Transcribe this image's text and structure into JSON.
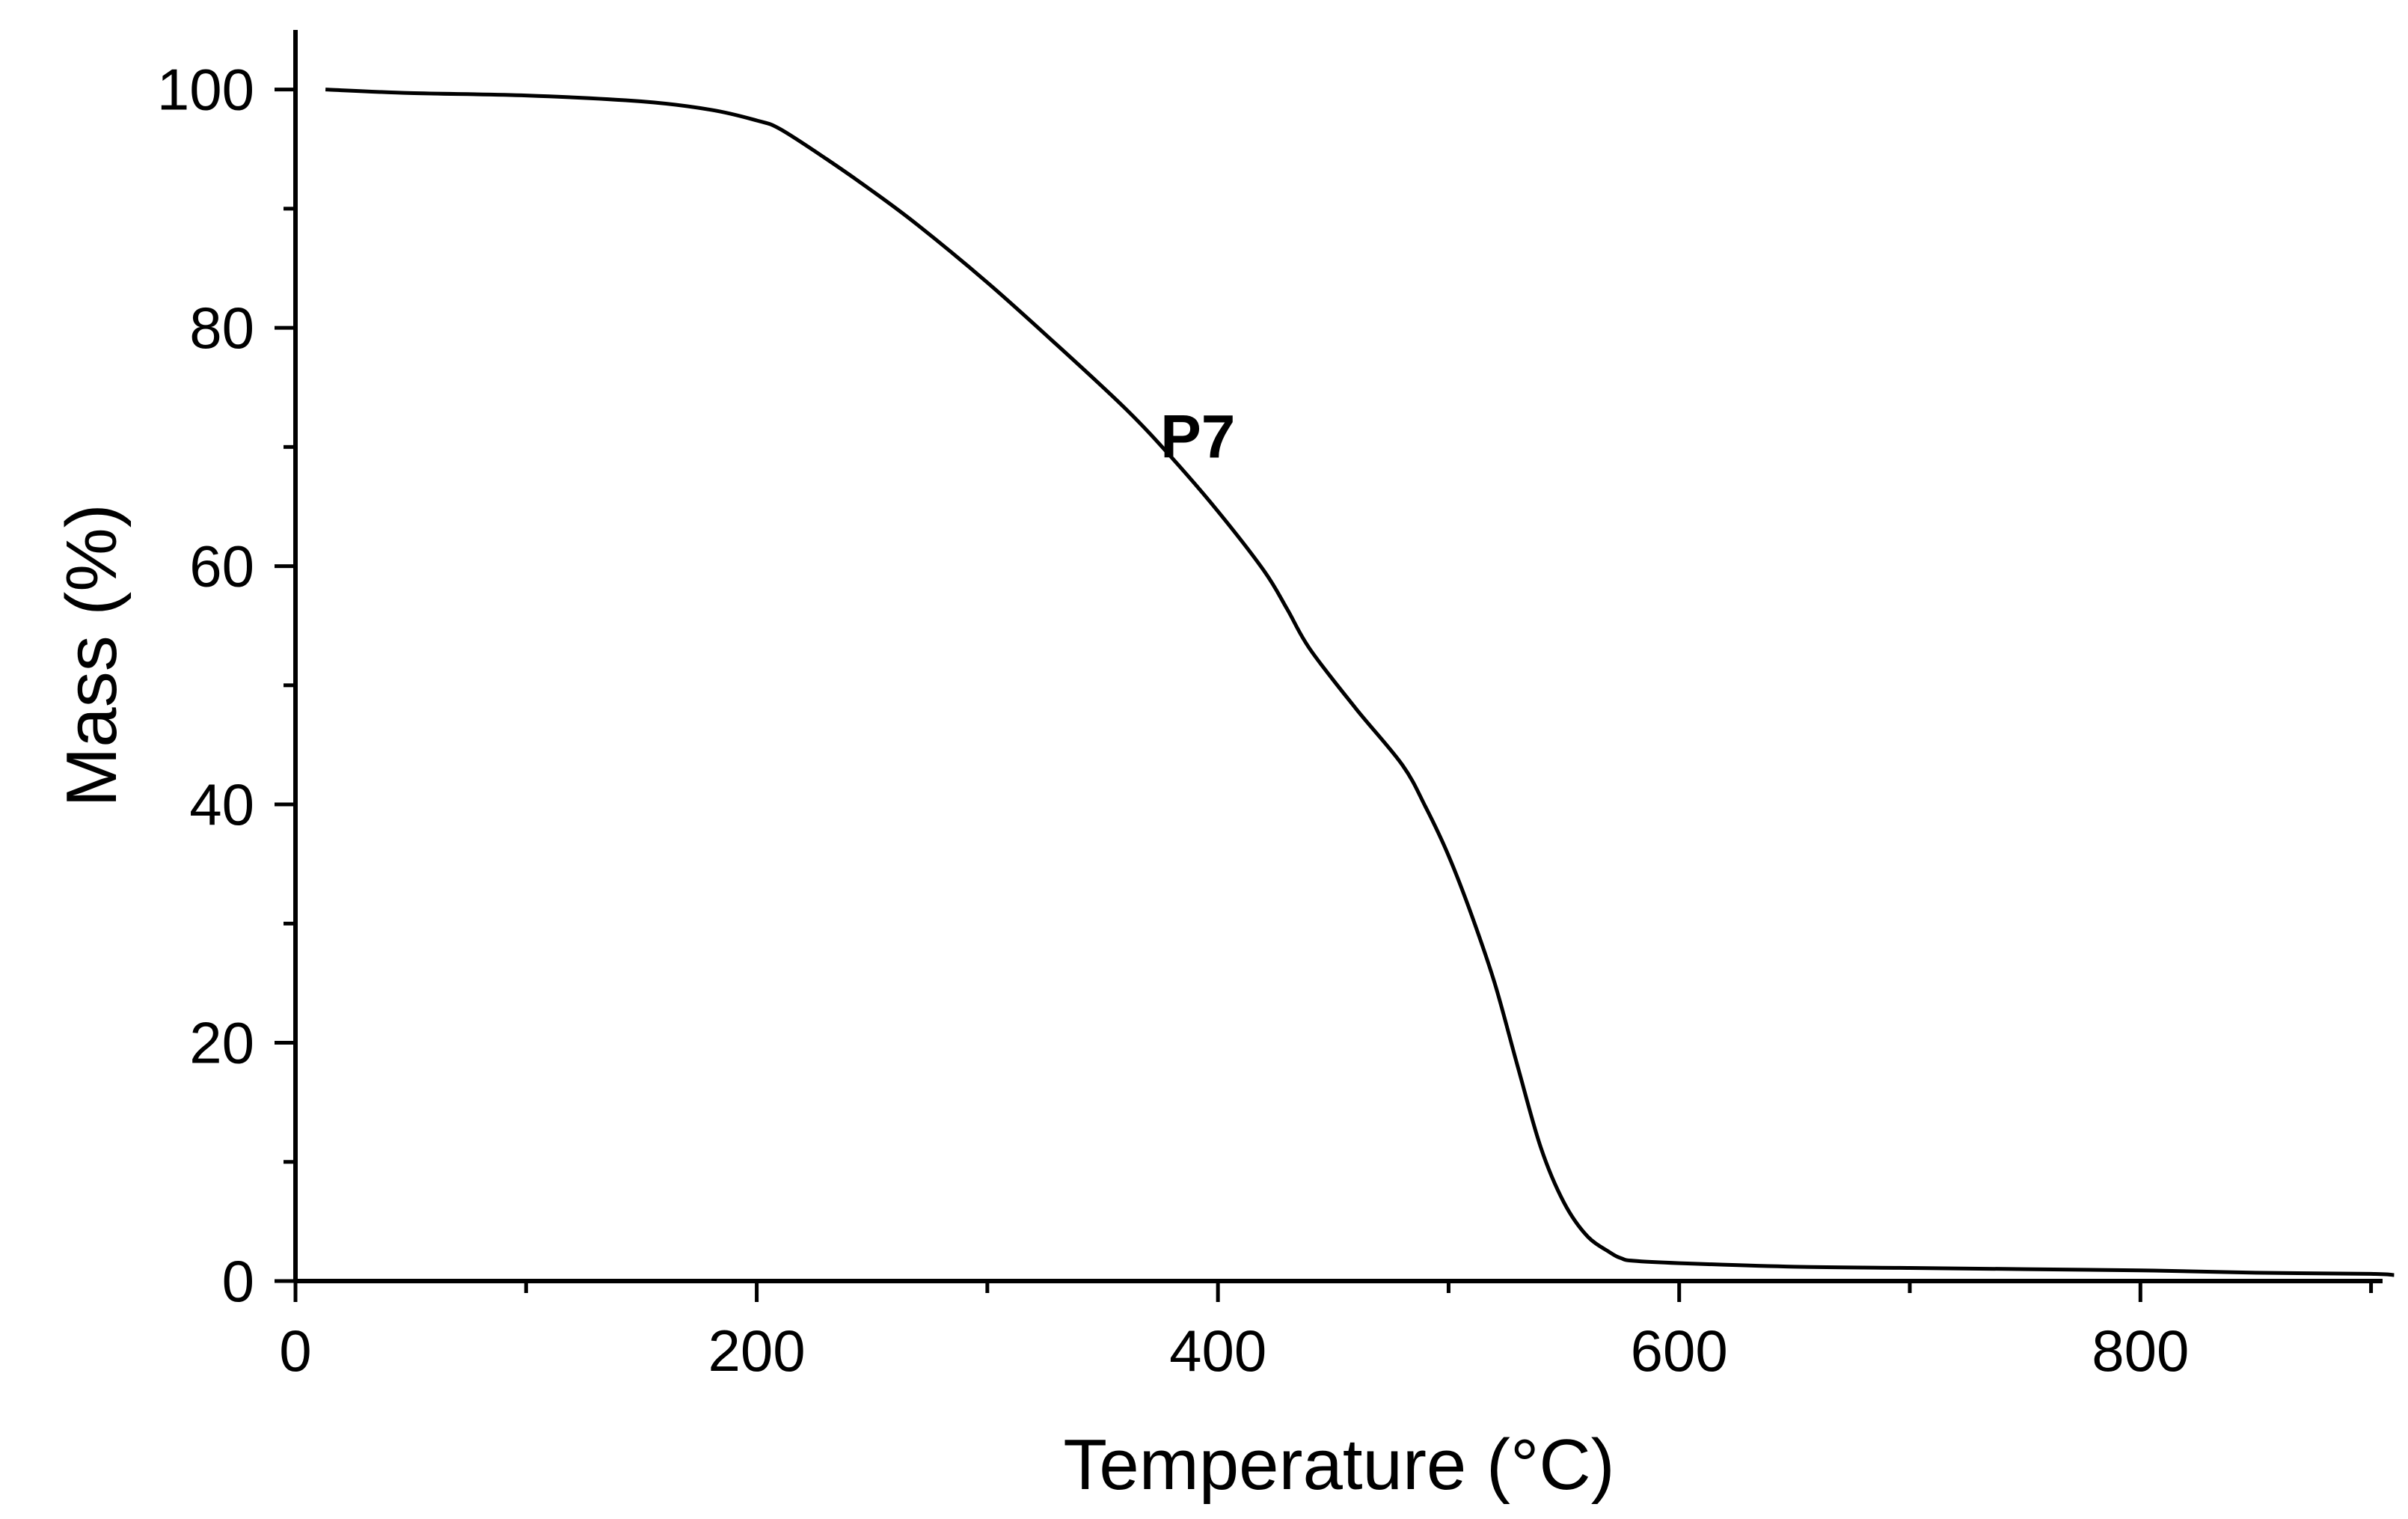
{
  "chart_data": {
    "type": "line",
    "title": "",
    "xlabel": "Temperature (°C)",
    "ylabel": "Mass (%)",
    "xlim": [
      0,
      905
    ],
    "ylim": [
      0,
      105
    ],
    "x_ticks": [
      0,
      200,
      400,
      600,
      800
    ],
    "x_ticks_minor": [
      100,
      300,
      500,
      700,
      900
    ],
    "y_ticks": [
      0,
      20,
      40,
      60,
      80,
      100
    ],
    "y_ticks_minor": [
      10,
      30,
      50,
      70,
      90
    ],
    "grid": false,
    "legend": "none",
    "series": [
      {
        "name": "P7",
        "color": "#000000",
        "x": [
          13,
          50,
          100,
          150,
          180,
          200,
          210,
          230,
          250,
          270,
          300,
          330,
          360,
          380,
          400,
          420,
          430,
          440,
          460,
          480,
          490,
          500,
          510,
          520,
          530,
          540,
          550,
          560,
          570,
          575,
          580,
          600,
          650,
          700,
          750,
          800,
          850,
          900,
          910
        ],
        "y": [
          100,
          99.7,
          99.5,
          99.0,
          98.3,
          97.4,
          96.7,
          94.2,
          91.5,
          88.6,
          83.8,
          78.6,
          73.2,
          69.1,
          64.6,
          59.6,
          56.4,
          53.0,
          48.0,
          43.3,
          39.8,
          35.7,
          30.7,
          25.0,
          18.0,
          11.2,
          6.6,
          3.8,
          2.4,
          1.9,
          1.7,
          1.5,
          1.2,
          1.1,
          1.0,
          0.9,
          0.7,
          0.6,
          0.5
        ]
      }
    ],
    "annotations": [
      {
        "text": "P7",
        "x": 375,
        "y": 71
      }
    ]
  }
}
